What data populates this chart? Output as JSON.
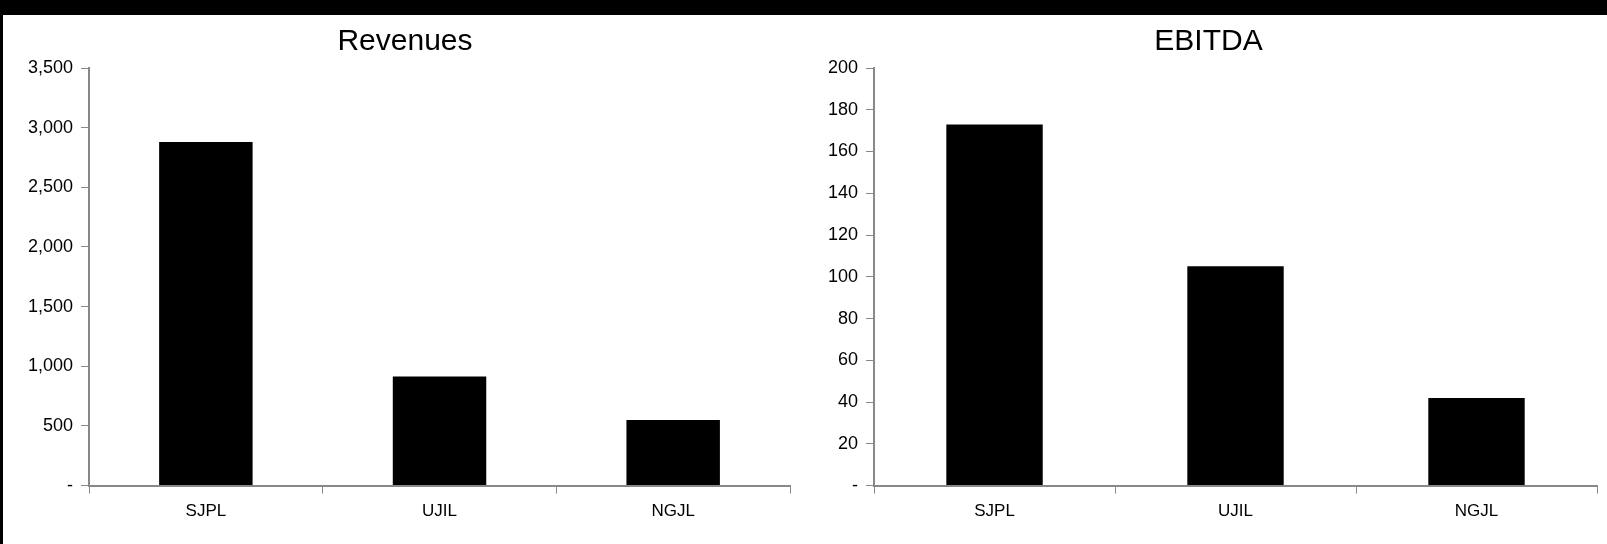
{
  "chart_data": [
    {
      "type": "bar",
      "title": "Revenues",
      "categories": [
        "SJPL",
        "UJIL",
        "NGJL"
      ],
      "values": [
        2880,
        915,
        550
      ],
      "color": "#000000",
      "ylim": [
        0,
        3500
      ],
      "yticks": [
        {
          "value": 0,
          "label": "-"
        },
        {
          "value": 500,
          "label": "500"
        },
        {
          "value": 1000,
          "label": "1,000"
        },
        {
          "value": 1500,
          "label": "1,500"
        },
        {
          "value": 2000,
          "label": "2,000"
        },
        {
          "value": 2500,
          "label": "2,500"
        },
        {
          "value": 3000,
          "label": "3,000"
        },
        {
          "value": 3500,
          "label": "3,500"
        }
      ],
      "grid": false,
      "legend": false
    },
    {
      "type": "bar",
      "title": "EBITDA",
      "categories": [
        "SJPL",
        "UJIL",
        "NGJL"
      ],
      "values": [
        173,
        105,
        42
      ],
      "color": "#000000",
      "ylim": [
        0,
        200
      ],
      "yticks": [
        {
          "value": 0,
          "label": "-"
        },
        20,
        40,
        60,
        80,
        100,
        120,
        140,
        160,
        180,
        200
      ],
      "grid": false,
      "legend": false
    }
  ]
}
